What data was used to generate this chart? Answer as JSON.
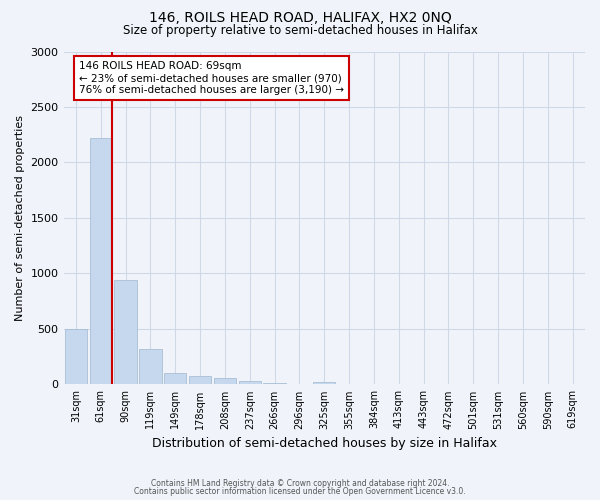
{
  "title": "146, ROILS HEAD ROAD, HALIFAX, HX2 0NQ",
  "subtitle": "Size of property relative to semi-detached houses in Halifax",
  "xlabel": "Distribution of semi-detached houses by size in Halifax",
  "ylabel": "Number of semi-detached properties",
  "categories": [
    "31sqm",
    "61sqm",
    "90sqm",
    "119sqm",
    "149sqm",
    "178sqm",
    "208sqm",
    "237sqm",
    "266sqm",
    "296sqm",
    "325sqm",
    "355sqm",
    "384sqm",
    "413sqm",
    "443sqm",
    "472sqm",
    "501sqm",
    "531sqm",
    "560sqm",
    "590sqm",
    "619sqm"
  ],
  "bar_values": [
    500,
    2220,
    940,
    315,
    100,
    80,
    55,
    30,
    15,
    5,
    25,
    0,
    0,
    0,
    0,
    0,
    0,
    0,
    0,
    0,
    0
  ],
  "bar_color": "#c5d8ed",
  "bar_edge_color": "#a0b8d0",
  "property_label": "146 ROILS HEAD ROAD: 69sqm",
  "smaller_pct": 23,
  "smaller_count": 970,
  "larger_pct": 76,
  "larger_count": 3190,
  "vline_color": "#cc0000",
  "annotation_box_color": "#cc0000",
  "ylim": [
    0,
    3000
  ],
  "yticks": [
    0,
    500,
    1000,
    1500,
    2000,
    2500,
    3000
  ],
  "footer_line1": "Contains HM Land Registry data © Crown copyright and database right 2024.",
  "footer_line2": "Contains public sector information licensed under the Open Government Licence v3.0.",
  "grid_color": "#d0d8e8",
  "background_color": "#f0f4fa",
  "vline_pos": 1.45
}
